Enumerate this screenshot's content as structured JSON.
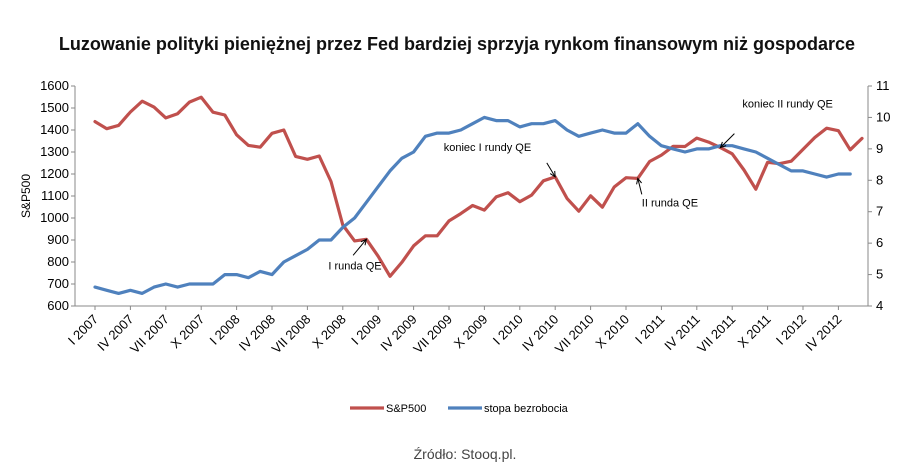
{
  "chart_data": {
    "type": "line",
    "title": "Luzowanie polityki pieniężnej przez Fed bardziej sprzyja rynkom finansowym niż gospodarce",
    "ylabel": "S&P500",
    "ylim": [
      600,
      1600
    ],
    "yticks": [
      600,
      700,
      800,
      900,
      1000,
      1100,
      1200,
      1300,
      1400,
      1500,
      1600
    ],
    "y2lim": [
      4,
      11
    ],
    "y2ticks": [
      4,
      5,
      6,
      7,
      8,
      9,
      10,
      11
    ],
    "x_tick_labels": [
      "I 2007",
      "IV 2007",
      "VII 2007",
      "X 2007",
      "I 2008",
      "IV 2008",
      "VII 2008",
      "X 2008",
      "I 2009",
      "IV 2009",
      "VII 2009",
      "X 2009",
      "I 2010",
      "IV 2010",
      "VII 2010",
      "X 2010",
      "I 2011",
      "IV 2011",
      "VII 2011",
      "X 2011",
      "I 2012",
      "IV 2012"
    ],
    "series": [
      {
        "name": "S&P500",
        "axis": "left",
        "color": "#c0504d",
        "values": [
          1438,
          1406,
          1421,
          1482,
          1531,
          1504,
          1455,
          1474,
          1527,
          1549,
          1481,
          1468,
          1378,
          1330,
          1322,
          1385,
          1400,
          1280,
          1267,
          1282,
          1166,
          968,
          896,
          903,
          826,
          735,
          798,
          873,
          919,
          919,
          987,
          1020,
          1057,
          1036,
          1096,
          1115,
          1074,
          1104,
          1169,
          1187,
          1089,
          1031,
          1101,
          1049,
          1141,
          1183,
          1180,
          1257,
          1286,
          1326,
          1325,
          1363,
          1345,
          1320,
          1292,
          1218,
          1131,
          1253,
          1247,
          1258,
          1312,
          1366,
          1408,
          1397,
          1310,
          1362
        ]
      },
      {
        "name": "stopa bezrobocia",
        "axis": "right",
        "color": "#4f81bd",
        "values": [
          4.6,
          4.5,
          4.4,
          4.5,
          4.4,
          4.6,
          4.7,
          4.6,
          4.7,
          4.7,
          4.7,
          5.0,
          5.0,
          4.9,
          5.1,
          5.0,
          5.4,
          5.6,
          5.8,
          6.1,
          6.1,
          6.5,
          6.8,
          7.3,
          7.8,
          8.3,
          8.7,
          8.9,
          9.4,
          9.5,
          9.5,
          9.6,
          9.8,
          10.0,
          9.9,
          9.9,
          9.7,
          9.8,
          9.8,
          9.9,
          9.6,
          9.4,
          9.5,
          9.6,
          9.5,
          9.5,
          9.8,
          9.4,
          9.1,
          9.0,
          8.9,
          9.0,
          9.0,
          9.1,
          9.1,
          9.0,
          8.9,
          8.7,
          8.5,
          8.3,
          8.3,
          8.2,
          8.1,
          8.2,
          8.2
        ]
      }
    ],
    "annotations": [
      {
        "text": "I runda QE",
        "series": "S&P500",
        "point_index": 23
      },
      {
        "text": "koniec I rundy QE",
        "series": "S&P500",
        "point_index": 39
      },
      {
        "text": "II runda QE",
        "series": "S&P500",
        "point_index": 46
      },
      {
        "text": "koniec II rundy QE",
        "series": "S&P500",
        "point_index": 53
      }
    ],
    "legend": {
      "position": "bottom",
      "entries": [
        "S&P500",
        "stopa bezrobocia"
      ]
    },
    "grid": false,
    "source": "Źródło: Stooq.pl."
  }
}
